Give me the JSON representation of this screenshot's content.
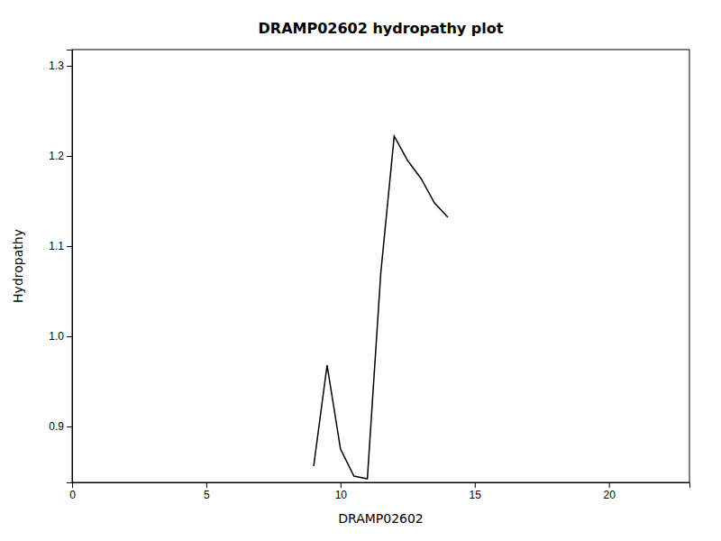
{
  "chart_data": {
    "type": "line",
    "title": "DRAMP02602 hydropathy plot",
    "xlabel": "DRAMP02602",
    "ylabel": "Hydropathy",
    "xlim": [
      0,
      23
    ],
    "ylim": [
      0.838,
      1.318
    ],
    "xticks": [
      0,
      5,
      10,
      15,
      20
    ],
    "yticks": [
      0.9,
      {
        "value": 1.0,
        "label": "1.0"
      },
      1.1,
      1.2,
      1.3
    ],
    "x": [
      9.0,
      9.5,
      10.0,
      10.5,
      11.0,
      11.5,
      12.0,
      12.5,
      13.0,
      13.5,
      14.0
    ],
    "values": [
      0.856,
      0.968,
      0.875,
      0.845,
      0.842,
      1.07,
      1.222,
      1.195,
      1.175,
      1.148,
      1.132
    ],
    "color": "#000000"
  }
}
